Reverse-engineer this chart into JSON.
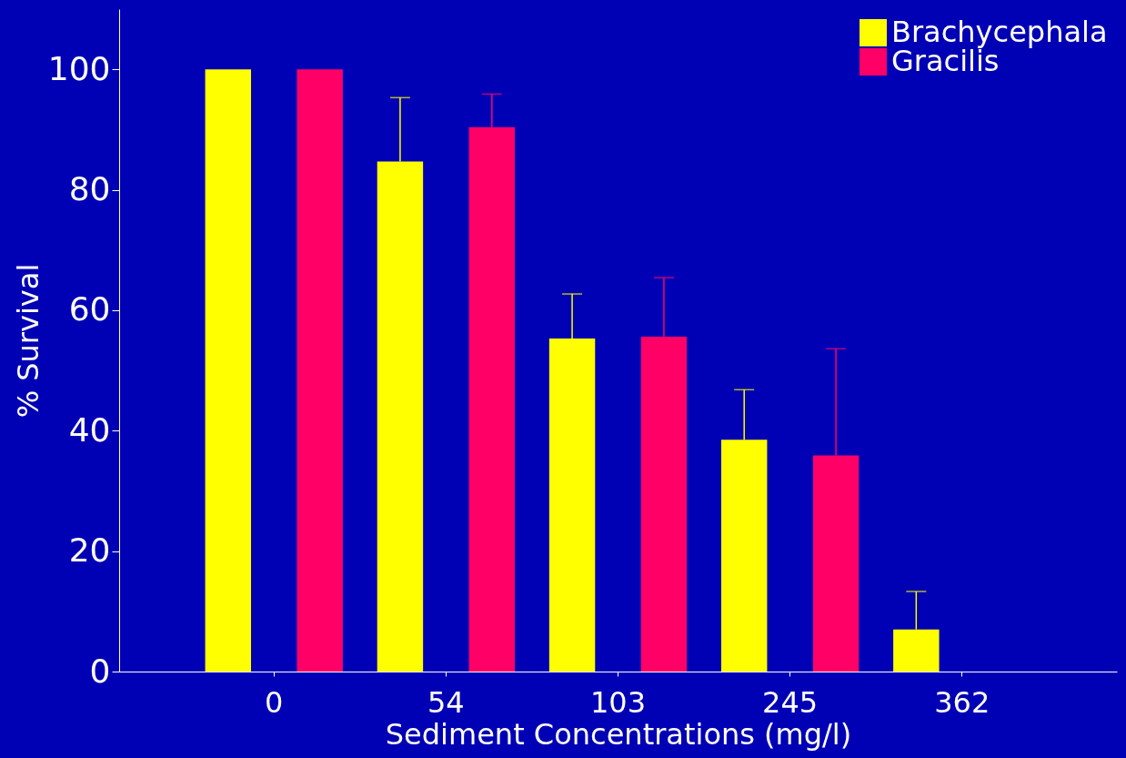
{
  "chart_data": {
    "type": "bar",
    "categories": [
      "0",
      "54",
      "103",
      "245",
      "362"
    ],
    "xlabel": "Sediment Concentrations (mg/l)",
    "ylabel": "% Survival",
    "series": [
      {
        "name": "Brachycephala",
        "color": "#ffff00",
        "values": [
          100,
          84.7,
          55.3,
          38.5,
          7.0
        ],
        "errors": [
          null,
          [
            84.7,
            95.3
          ],
          [
            55.3,
            62.7
          ],
          [
            38.5,
            46.8
          ],
          [
            7.0,
            13.3
          ]
        ]
      },
      {
        "name": "Gracilis",
        "color": "#ff0066",
        "values": [
          100,
          90.4,
          55.6,
          35.9,
          0
        ],
        "errors": [
          null,
          [
            90.4,
            95.9
          ],
          [
            55.6,
            65.4
          ],
          [
            35.9,
            53.6
          ],
          null
        ]
      }
    ],
    "ylim": [
      0,
      110
    ],
    "yticks": [
      0,
      20,
      40,
      60,
      80,
      100
    ],
    "grid": false,
    "legend": "top right"
  }
}
